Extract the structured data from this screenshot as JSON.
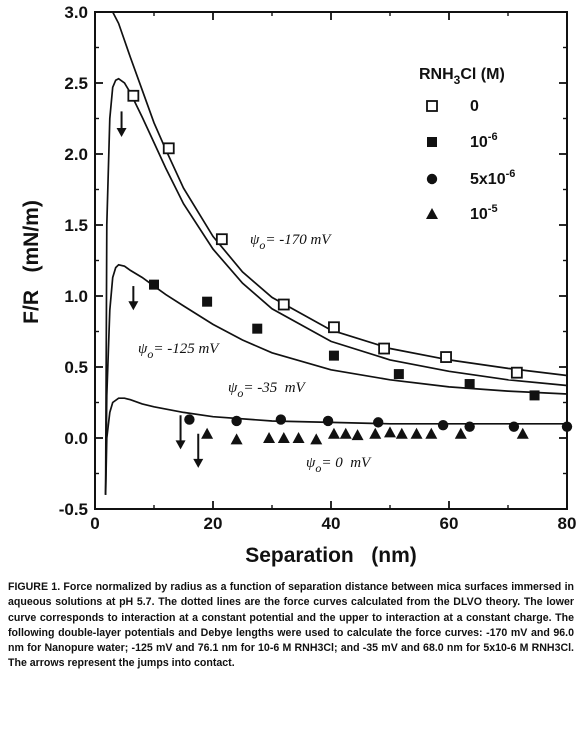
{
  "chart_data": {
    "type": "scatter",
    "xlabel": "Separation   (nm)",
    "ylabel": "F/R   (mN/m)",
    "xlim": [
      0,
      80
    ],
    "ylim": [
      -0.5,
      3.0
    ],
    "xticks": [
      "0",
      "20",
      "40",
      "60",
      "80"
    ],
    "yticks": [
      "-0.5",
      "0.0",
      "0.5",
      "1.0",
      "1.5",
      "2.0",
      "2.5",
      "3.0"
    ],
    "legend_title": "RNH3Cl (M)",
    "legend_placement": "top-right",
    "grid": false,
    "series": [
      {
        "name": "0",
        "marker": "open-square",
        "x": [
          6.5,
          12.5,
          21.5,
          32,
          40.5,
          49,
          59.5,
          71.5
        ],
        "y": [
          2.41,
          2.04,
          1.4,
          0.94,
          0.78,
          0.63,
          0.57,
          0.46
        ]
      },
      {
        "name": "10-6",
        "marker": "filled-square",
        "x": [
          10,
          19,
          27.5,
          40.5,
          51.5,
          63.5,
          74.5
        ],
        "y": [
          1.08,
          0.96,
          0.77,
          0.58,
          0.45,
          0.38,
          0.3
        ]
      },
      {
        "name": "5x10-6",
        "marker": "filled-circle",
        "x": [
          16,
          24,
          31.5,
          39.5,
          48,
          59,
          63.5,
          71,
          80
        ],
        "y": [
          0.13,
          0.12,
          0.13,
          0.12,
          0.11,
          0.09,
          0.08,
          0.08,
          0.08
        ]
      },
      {
        "name": "10-5",
        "marker": "filled-triangle",
        "x": [
          19,
          24,
          29.5,
          32,
          34.5,
          37.5,
          40.5,
          42.5,
          44.5,
          47.5,
          50,
          52,
          54.5,
          57,
          62,
          72.5
        ],
        "y": [
          0.03,
          -0.01,
          0.0,
          0.0,
          0.0,
          -0.01,
          0.03,
          0.03,
          0.02,
          0.03,
          0.04,
          0.03,
          0.03,
          0.03,
          0.03,
          0.03
        ]
      }
    ],
    "curve_labels": [
      {
        "symbol": "ψ",
        "sub": "o",
        "text": "= -170 mV"
      },
      {
        "symbol": "ψ",
        "sub": "o",
        "text": "= -125 mV"
      },
      {
        "symbol": "ψ",
        "sub": "o",
        "text": "= -35  mV"
      },
      {
        "symbol": "ψ",
        "sub": "o",
        "text": "= 0  mV"
      }
    ],
    "fitted_curves": [
      {
        "x": [
          3,
          4,
          5,
          6,
          8,
          10,
          12,
          15,
          20,
          25,
          30,
          40,
          50,
          60,
          70,
          80
        ],
        "y": [
          3.1,
          2.92,
          2.8,
          2.68,
          2.45,
          2.22,
          2.03,
          1.76,
          1.42,
          1.17,
          0.99,
          0.76,
          0.63,
          0.55,
          0.49,
          0.44
        ]
      },
      {
        "x": [
          1.8,
          2,
          2.5,
          3,
          3.5,
          4,
          5,
          6,
          8,
          10,
          12,
          15,
          20,
          25,
          30,
          40,
          50,
          60,
          70,
          80
        ],
        "y": [
          -0.4,
          1.5,
          2.25,
          2.47,
          2.52,
          2.53,
          2.5,
          2.43,
          2.26,
          2.08,
          1.9,
          1.65,
          1.33,
          1.09,
          0.91,
          0.68,
          0.55,
          0.47,
          0.41,
          0.37
        ]
      },
      {
        "x": [
          1.8,
          2,
          2.5,
          3,
          3.5,
          4,
          5,
          6,
          8,
          10,
          12,
          15,
          20,
          25,
          30,
          40,
          50,
          60,
          70,
          80
        ],
        "y": [
          -0.4,
          0.3,
          0.9,
          1.13,
          1.2,
          1.22,
          1.21,
          1.18,
          1.13,
          1.07,
          1.01,
          0.93,
          0.8,
          0.69,
          0.6,
          0.48,
          0.41,
          0.36,
          0.33,
          0.31
        ]
      },
      {
        "x": [
          1.8,
          2,
          2.5,
          3,
          4,
          5,
          6,
          8,
          10,
          15,
          20,
          30,
          40,
          50,
          60,
          70,
          80
        ],
        "y": [
          -0.4,
          0.0,
          0.18,
          0.25,
          0.28,
          0.28,
          0.27,
          0.24,
          0.22,
          0.18,
          0.15,
          0.12,
          0.11,
          0.1,
          0.1,
          0.1,
          0.1
        ]
      }
    ],
    "jump_arrows": [
      {
        "x": 4.5,
        "y_from": 2.3,
        "y_to": 2.12
      },
      {
        "x": 6.5,
        "y_from": 1.07,
        "y_to": 0.9
      },
      {
        "x": 14.5,
        "y_from": 0.16,
        "y_to": -0.08
      },
      {
        "x": 17.5,
        "y_from": 0.03,
        "y_to": -0.21
      }
    ]
  },
  "caption": "FIGURE 1. Force normalized by radius as a function of separation distance between mica surfaces immersed in aqueous solutions at pH 5.7. The dotted lines are the force curves calculated from the DLVO theory. The lower curve corresponds to interaction at a constant potential and the upper to interaction at a constant charge. The following double-layer potentials and Debye lengths were used to calculate the force curves: -170 mV and 96.0 nm for Nanopure water; -125 mV and 76.1 nm for 10-6 M RNH3Cl; and -35 mV and 68.0 nm for 5x10-6 M RNH3Cl. The arrows represent the jumps into contact.",
  "colors": {
    "ink": "#111111",
    "background": "#ffffff"
  }
}
